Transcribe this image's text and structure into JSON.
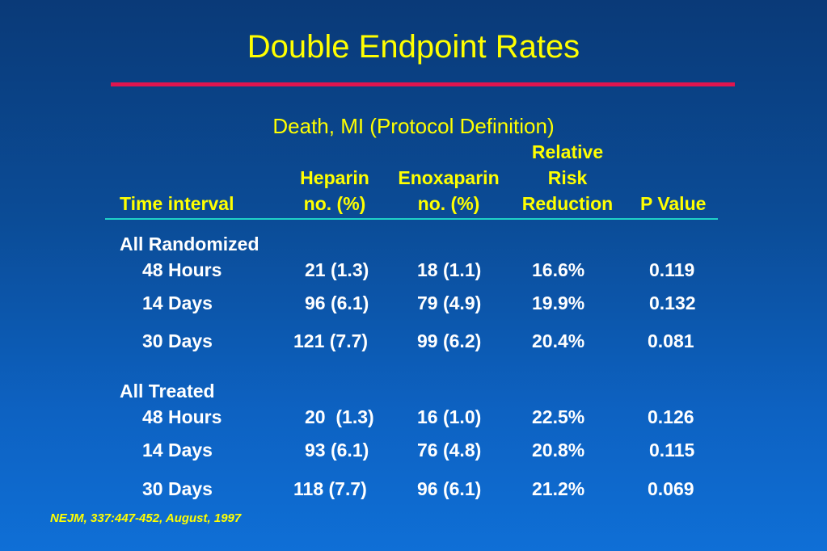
{
  "title": "Double Endpoint Rates",
  "subtitle": "Death, MI (Protocol Definition)",
  "columns": {
    "time_interval": "Time interval",
    "heparin_1": "Heparin",
    "heparin_2": "no. (%)",
    "enox_1": "Enoxaparin",
    "enox_2": "no. (%)",
    "rrr_1": "Relative",
    "rrr_2": "Risk",
    "rrr_3": "Reduction",
    "p_value": "P Value"
  },
  "groups": [
    {
      "label": "All Randomized",
      "rows": [
        {
          "interval": "48 Hours",
          "heparin": "21 (1.3)",
          "enoxaparin": "18 (1.1)",
          "rrr": "16.6%",
          "p": "0.119"
        },
        {
          "interval": "14 Days",
          "heparin": "96 (6.1)",
          "enoxaparin": "79 (4.9)",
          "rrr": "19.9%",
          "p": "0.132"
        },
        {
          "interval": "30 Days",
          "heparin": "121 (7.7)",
          "enoxaparin": "99 (6.2)",
          "rrr": "20.4%",
          "p": "0.081"
        }
      ]
    },
    {
      "label": "All Treated",
      "rows": [
        {
          "interval": "48 Hours",
          "heparin": "20  (1.3)",
          "enoxaparin": "16 (1.0)",
          "rrr": "22.5%",
          "p": "0.126"
        },
        {
          "interval": "14 Days",
          "heparin": "93 (6.1)",
          "enoxaparin": "76 (4.8)",
          "rrr": "20.8%",
          "p": "0.115"
        },
        {
          "interval": "30 Days",
          "heparin": "118 (7.7)",
          "enoxaparin": "96 (6.1)",
          "rrr": "21.2%",
          "p": "0.069"
        }
      ]
    }
  ],
  "footnote": "NEJM, 337:447-452, August, 1997",
  "colors": {
    "background_top": "#0a3a78",
    "background_bottom": "#0f6fd6",
    "title": "#ffff00",
    "rule_red": "#e0154f",
    "rule_teal": "#1fd2c8",
    "body_text": "#ffffff"
  }
}
